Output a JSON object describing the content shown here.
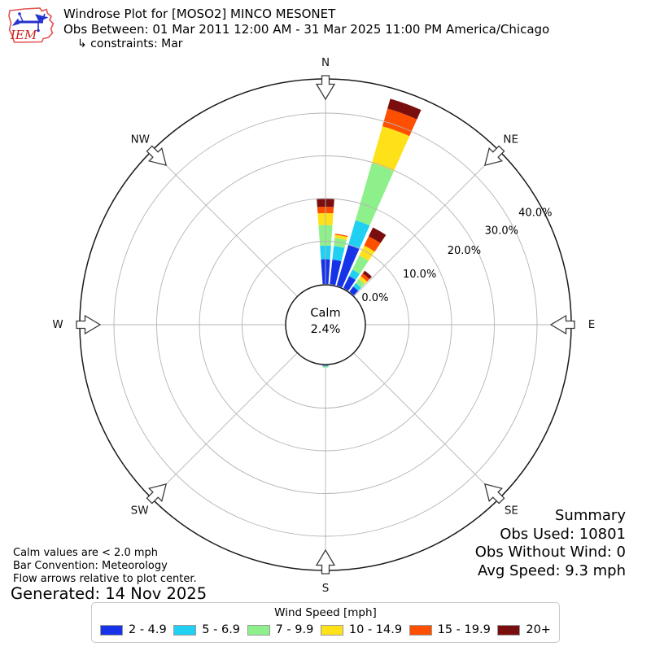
{
  "header": {
    "logo_text": "IEM",
    "title": "Windrose Plot for [MOSO2] MINCO MESONET",
    "subtitle": "Obs Between: 01 Mar 2011 12:00 AM - 31 Mar 2025 11:00 PM America/Chicago",
    "constraints": "↳ constraints: Mar"
  },
  "summary": {
    "heading": "Summary",
    "lines": [
      "Obs Used: 10801",
      "Obs Without Wind: 0",
      "Avg Speed: 9.3 mph"
    ]
  },
  "notes": {
    "calm": "Calm values are < 2.0 mph",
    "convention": "Bar Convention: Meteorology",
    "arrows": "Flow arrows relative to plot center.",
    "generated": "Generated: 14 Nov 2025"
  },
  "legend": {
    "title": "Wind Speed [mph]",
    "items": [
      {
        "label": "2 - 4.9",
        "color": "#1733e8"
      },
      {
        "label": "5 - 6.9",
        "color": "#1fd0f2"
      },
      {
        "label": "7 - 9.9",
        "color": "#8df08a"
      },
      {
        "label": "10 - 14.9",
        "color": "#ffe11a"
      },
      {
        "label": "15 - 19.9",
        "color": "#fc4f00"
      },
      {
        "label": "20+",
        "color": "#7a0d0d"
      }
    ]
  },
  "chart_data": {
    "type": "windrose",
    "units": "mph",
    "calm_label": "Calm",
    "calm_percent_label": "2.4%",
    "calm_percent": 2.4,
    "compass_labels": [
      "N",
      "NE",
      "E",
      "SE",
      "S",
      "SW",
      "W",
      "NW"
    ],
    "ring_percent_labels": [
      "0.0%",
      "10.0%",
      "20.0%",
      "30.0%",
      "40.0%"
    ],
    "ring_percent_values": [
      0,
      10,
      20,
      30,
      40
    ],
    "speed_bins_mph": [
      "2 - 4.9",
      "5 - 6.9",
      "7 - 9.9",
      "10 - 14.9",
      "15 - 19.9",
      "20+"
    ],
    "bin_colors": [
      "#1733e8",
      "#1fd0f2",
      "#8df08a",
      "#ffe11a",
      "#fc4f00",
      "#7a0d0d"
    ],
    "bar_width_deg": 8,
    "directions": [
      {
        "angle_deg": 0,
        "values_pct": [
          5.8,
          3.2,
          4.8,
          2.8,
          1.5,
          1.9
        ]
      },
      {
        "angle_deg": 10,
        "values_pct": [
          5.8,
          3.2,
          1.9,
          0.75,
          0.25,
          0
        ]
      },
      {
        "angle_deg": 20,
        "values_pct": [
          9.9,
          6.0,
          13.9,
          9.0,
          4.3,
          2.4
        ]
      },
      {
        "angle_deg": 30,
        "values_pct": [
          3.1,
          1.7,
          3.7,
          2.6,
          2.4,
          2.3
        ]
      },
      {
        "angle_deg": 40,
        "values_pct": [
          1.5,
          1.0,
          1.2,
          0.8,
          0.8,
          0.8
        ]
      },
      {
        "angle_deg": 180,
        "values_pct": [
          0.15,
          0.1,
          0.25,
          0,
          0,
          0
        ]
      }
    ]
  }
}
